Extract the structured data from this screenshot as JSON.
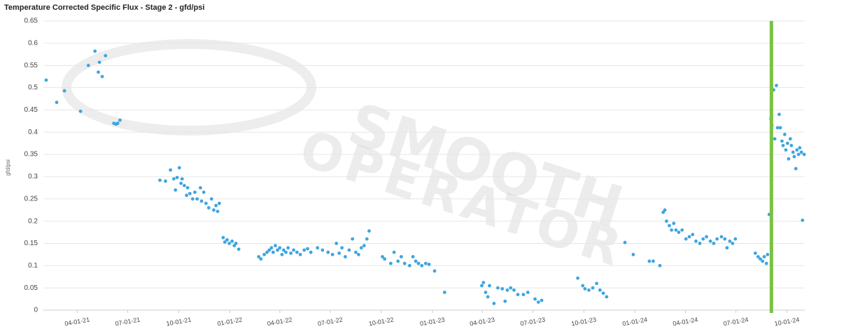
{
  "chart_data": {
    "type": "scatter",
    "title": "Temperature Corrected Specific Flux - Stage 2 - gfd/psi",
    "y_label": "gfd/psi",
    "watermark": [
      "SMOOTH",
      "OPERATOR"
    ],
    "color": "#3da5e0",
    "vline": {
      "x": "2024-09-03",
      "color": "#7cc242"
    },
    "grid": true,
    "xlim": [
      "2021-01-30",
      "2024-11-02"
    ],
    "xticks": [
      {
        "value": "2021-04-01",
        "label": "04-01-21"
      },
      {
        "value": "2021-07-01",
        "label": "07-01-21"
      },
      {
        "value": "2021-10-01",
        "label": "10-01-21"
      },
      {
        "value": "2022-01-01",
        "label": "01-01-22"
      },
      {
        "value": "2022-04-01",
        "label": "04-01-22"
      },
      {
        "value": "2022-07-01",
        "label": "07-01-22"
      },
      {
        "value": "2022-10-01",
        "label": "10-01-22"
      },
      {
        "value": "2023-01-01",
        "label": "01-01-23"
      },
      {
        "value": "2023-04-01",
        "label": "04-01-23"
      },
      {
        "value": "2023-07-01",
        "label": "07-01-23"
      },
      {
        "value": "2023-10-01",
        "label": "10-01-23"
      },
      {
        "value": "2024-01-01",
        "label": "01-01-24"
      },
      {
        "value": "2024-04-01",
        "label": "04-01-24"
      },
      {
        "value": "2024-07-01",
        "label": "07-01-24"
      },
      {
        "value": "2024-10-01",
        "label": "10-01-24"
      }
    ],
    "ylim": [
      0,
      0.65
    ],
    "yticks": [
      0,
      0.05,
      0.1,
      0.15,
      0.2,
      0.25,
      0.3,
      0.35,
      0.4,
      0.45,
      0.5,
      0.55,
      0.6,
      0.65
    ],
    "x": [
      "2021-02-04",
      "2021-02-23",
      "2021-03-09",
      "2021-04-07",
      "2021-04-21",
      "2021-05-03",
      "2021-05-09",
      "2021-05-11",
      "2021-05-16",
      "2021-05-22",
      "2021-06-06",
      "2021-06-10",
      "2021-06-13",
      "2021-06-17",
      "2021-08-28",
      "2021-09-07",
      "2021-09-16",
      "2021-09-22",
      "2021-09-25",
      "2021-09-28",
      "2021-10-02",
      "2021-10-05",
      "2021-10-07",
      "2021-10-11",
      "2021-10-15",
      "2021-10-17",
      "2021-10-21",
      "2021-10-26",
      "2021-10-30",
      "2021-11-03",
      "2021-11-09",
      "2021-11-11",
      "2021-11-15",
      "2021-11-19",
      "2021-11-24",
      "2021-11-29",
      "2021-12-03",
      "2021-12-07",
      "2021-12-10",
      "2021-12-13",
      "2021-12-20",
      "2021-12-23",
      "2021-12-27",
      "2021-12-31",
      "2022-01-05",
      "2022-01-09",
      "2022-01-12",
      "2022-01-17",
      "2022-02-22",
      "2022-02-26",
      "2022-03-04",
      "2022-03-09",
      "2022-03-13",
      "2022-03-17",
      "2022-03-20",
      "2022-03-24",
      "2022-03-28",
      "2022-04-01",
      "2022-04-05",
      "2022-04-08",
      "2022-04-12",
      "2022-04-16",
      "2022-04-21",
      "2022-04-26",
      "2022-05-02",
      "2022-05-08",
      "2022-05-15",
      "2022-05-21",
      "2022-05-27",
      "2022-06-08",
      "2022-06-17",
      "2022-06-27",
      "2022-07-05",
      "2022-07-12",
      "2022-07-17",
      "2022-07-22",
      "2022-07-28",
      "2022-08-04",
      "2022-08-10",
      "2022-08-16",
      "2022-08-21",
      "2022-08-26",
      "2022-08-31",
      "2022-09-05",
      "2022-09-09",
      "2022-10-03",
      "2022-10-07",
      "2022-10-18",
      "2022-10-24",
      "2022-10-31",
      "2022-11-06",
      "2022-11-12",
      "2022-11-21",
      "2022-11-27",
      "2022-12-02",
      "2022-12-07",
      "2022-12-13",
      "2022-12-20",
      "2022-12-26",
      "2023-01-05",
      "2023-01-23",
      "2023-03-31",
      "2023-04-03",
      "2023-04-07",
      "2023-04-11",
      "2023-04-14",
      "2023-04-22",
      "2023-04-29",
      "2023-05-07",
      "2023-05-12",
      "2023-05-16",
      "2023-05-22",
      "2023-05-28",
      "2023-06-04",
      "2023-06-14",
      "2023-06-22",
      "2023-07-05",
      "2023-07-11",
      "2023-07-17",
      "2023-09-20",
      "2023-09-29",
      "2023-10-03",
      "2023-10-10",
      "2023-10-17",
      "2023-10-24",
      "2023-10-30",
      "2023-11-05",
      "2023-11-11",
      "2023-12-14",
      "2023-12-29",
      "2024-01-27",
      "2024-02-03",
      "2024-02-15",
      "2024-02-21",
      "2024-02-24",
      "2024-02-27",
      "2024-03-03",
      "2024-03-07",
      "2024-03-11",
      "2024-03-15",
      "2024-03-20",
      "2024-03-26",
      "2024-04-02",
      "2024-04-08",
      "2024-04-14",
      "2024-04-20",
      "2024-04-27",
      "2024-05-03",
      "2024-05-09",
      "2024-05-16",
      "2024-05-22",
      "2024-05-28",
      "2024-06-05",
      "2024-06-11",
      "2024-06-15",
      "2024-06-20",
      "2024-06-25",
      "2024-06-30",
      "2024-08-05",
      "2024-08-10",
      "2024-08-14",
      "2024-08-18",
      "2024-08-21",
      "2024-08-25",
      "2024-08-27",
      "2024-08-30",
      "2024-09-02",
      "2024-09-04",
      "2024-09-07",
      "2024-09-09",
      "2024-09-12",
      "2024-09-14",
      "2024-09-17",
      "2024-09-19",
      "2024-09-22",
      "2024-09-24",
      "2024-09-27",
      "2024-09-29",
      "2024-10-02",
      "2024-10-04",
      "2024-10-07",
      "2024-10-09",
      "2024-10-12",
      "2024-10-14",
      "2024-10-17",
      "2024-10-19",
      "2024-10-22",
      "2024-10-24",
      "2024-10-27",
      "2024-10-29",
      "2024-11-01"
    ],
    "values": [
      0.517,
      0.467,
      0.493,
      0.447,
      0.55,
      0.582,
      0.535,
      0.557,
      0.525,
      0.572,
      0.42,
      0.418,
      0.42,
      0.427,
      0.292,
      0.29,
      0.315,
      0.295,
      0.27,
      0.298,
      0.32,
      0.285,
      0.295,
      0.28,
      0.258,
      0.275,
      0.262,
      0.25,
      0.265,
      0.25,
      0.275,
      0.245,
      0.265,
      0.24,
      0.23,
      0.25,
      0.225,
      0.235,
      0.222,
      0.24,
      0.163,
      0.153,
      0.158,
      0.15,
      0.155,
      0.145,
      0.15,
      0.137,
      0.12,
      0.115,
      0.125,
      0.13,
      0.135,
      0.14,
      0.13,
      0.145,
      0.135,
      0.14,
      0.125,
      0.135,
      0.13,
      0.14,
      0.128,
      0.135,
      0.13,
      0.125,
      0.135,
      0.138,
      0.13,
      0.14,
      0.135,
      0.13,
      0.125,
      0.15,
      0.128,
      0.14,
      0.12,
      0.135,
      0.16,
      0.13,
      0.125,
      0.14,
      0.145,
      0.16,
      0.178,
      0.12,
      0.115,
      0.105,
      0.13,
      0.11,
      0.12,
      0.105,
      0.1,
      0.12,
      0.11,
      0.105,
      0.1,
      0.105,
      0.103,
      0.088,
      0.04,
      0.055,
      0.062,
      0.04,
      0.03,
      0.055,
      0.015,
      0.05,
      0.048,
      0.02,
      0.045,
      0.05,
      0.045,
      0.035,
      0.035,
      0.04,
      0.025,
      0.018,
      0.022,
      0.072,
      0.055,
      0.048,
      0.045,
      0.05,
      0.06,
      0.045,
      0.038,
      0.03,
      0.152,
      0.125,
      0.11,
      0.11,
      0.1,
      0.22,
      0.225,
      0.2,
      0.19,
      0.18,
      0.195,
      0.18,
      0.175,
      0.18,
      0.16,
      0.165,
      0.17,
      0.155,
      0.15,
      0.16,
      0.165,
      0.155,
      0.15,
      0.16,
      0.165,
      0.16,
      0.14,
      0.155,
      0.15,
      0.16,
      0.128,
      0.12,
      0.115,
      0.11,
      0.12,
      0.105,
      0.125,
      0.215,
      0.43,
      0.415,
      0.495,
      0.385,
      0.505,
      0.41,
      0.44,
      0.41,
      0.38,
      0.37,
      0.395,
      0.36,
      0.375,
      0.34,
      0.385,
      0.37,
      0.355,
      0.345,
      0.318,
      0.36,
      0.35,
      0.365,
      0.355,
      0.202,
      0.35
    ]
  }
}
